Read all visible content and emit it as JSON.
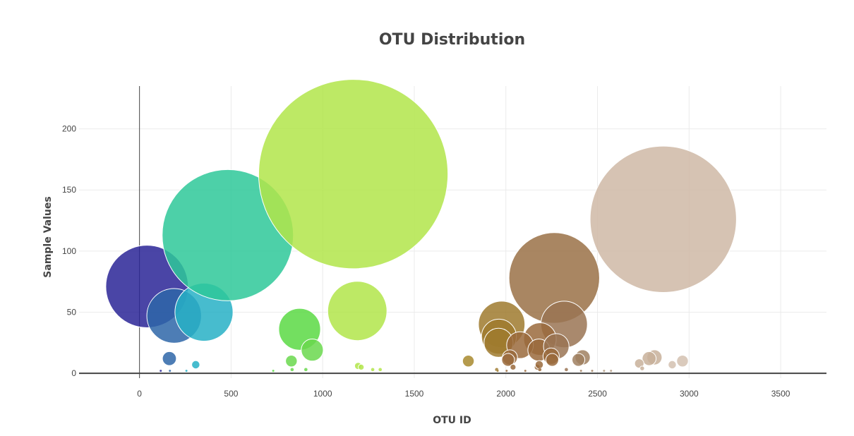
{
  "chart_data": {
    "type": "scatter",
    "variant": "bubble",
    "title": "OTU Distribution",
    "xlabel": "OTU ID",
    "ylabel": "Sample Values",
    "xlim": [
      -330,
      3750
    ],
    "ylim": [
      -4,
      235
    ],
    "xticks": [
      0,
      500,
      1000,
      1500,
      2000,
      2500,
      3000,
      3500
    ],
    "yticks": [
      0,
      50,
      100,
      150,
      200
    ],
    "grid": true,
    "legend": "none",
    "colorscale": "Earth",
    "points": [
      {
        "x": 41,
        "y": 71,
        "color": "#2a2596"
      },
      {
        "x": 189,
        "y": 47,
        "color": "#2e66a8"
      },
      {
        "x": 352,
        "y": 50,
        "color": "#27b0c6"
      },
      {
        "x": 482,
        "y": 113,
        "color": "#2ec899"
      },
      {
        "x": 1167,
        "y": 163,
        "color": "#b2e54a"
      },
      {
        "x": 2264,
        "y": 78,
        "color": "#9a7147"
      },
      {
        "x": 2859,
        "y": 126,
        "color": "#cfb9a6"
      },
      {
        "x": 874,
        "y": 36,
        "color": "#5ad944"
      },
      {
        "x": 1189,
        "y": 51,
        "color": "#b2e54a"
      },
      {
        "x": 1977,
        "y": 40,
        "color": "#9f7a2e"
      },
      {
        "x": 1962,
        "y": 30,
        "color": "#9f7a2e"
      },
      {
        "x": 1960,
        "y": 25,
        "color": "#9f7a2e"
      },
      {
        "x": 2318,
        "y": 40,
        "color": "#9a7454"
      },
      {
        "x": 2186,
        "y": 28,
        "color": "#9a6a3c"
      },
      {
        "x": 2077,
        "y": 23,
        "color": "#9a6a3c"
      },
      {
        "x": 2180,
        "y": 19,
        "color": "#9a6a3c"
      },
      {
        "x": 2275,
        "y": 22,
        "color": "#9a7454"
      },
      {
        "x": 943,
        "y": 19,
        "color": "#6ad84e"
      },
      {
        "x": 163,
        "y": 12,
        "color": "#2e66a8"
      },
      {
        "x": 307,
        "y": 7,
        "color": "#27b0c6"
      },
      {
        "x": 829,
        "y": 10,
        "color": "#6ad84e"
      },
      {
        "x": 1795,
        "y": 10,
        "color": "#a88a2e"
      },
      {
        "x": 2022,
        "y": 13,
        "color": "#9a6a3c"
      },
      {
        "x": 2012,
        "y": 11,
        "color": "#9a6a3c"
      },
      {
        "x": 2247,
        "y": 14,
        "color": "#9a6a3c"
      },
      {
        "x": 2253,
        "y": 11,
        "color": "#9a6a3c"
      },
      {
        "x": 2419,
        "y": 13,
        "color": "#a08060"
      },
      {
        "x": 2396,
        "y": 11,
        "color": "#a08060"
      },
      {
        "x": 2811,
        "y": 13,
        "color": "#c8b09a"
      },
      {
        "x": 2782,
        "y": 12,
        "color": "#c8b09a"
      },
      {
        "x": 2728,
        "y": 8,
        "color": "#c8b09a"
      },
      {
        "x": 2964,
        "y": 10,
        "color": "#d4c1b0"
      },
      {
        "x": 2908,
        "y": 7,
        "color": "#d4c1b0"
      },
      {
        "x": 1193,
        "y": 6,
        "color": "#b2e54a"
      },
      {
        "x": 1210,
        "y": 5,
        "color": "#b2e54a"
      },
      {
        "x": 2039,
        "y": 5,
        "color": "#9a6a3c"
      },
      {
        "x": 2171,
        "y": 5,
        "color": "#9a6a3c"
      },
      {
        "x": 2182,
        "y": 7,
        "color": "#9a6a3c"
      },
      {
        "x": 2744,
        "y": 4,
        "color": "#c8b09a"
      },
      {
        "x": 1273,
        "y": 3,
        "color": "#b2e54a"
      },
      {
        "x": 908,
        "y": 3,
        "color": "#6ad84e"
      },
      {
        "x": 833,
        "y": 3,
        "color": "#6ad84e"
      },
      {
        "x": 1314,
        "y": 3,
        "color": "#b2e54a"
      },
      {
        "x": 1950,
        "y": 3,
        "color": "#9f7a2e"
      },
      {
        "x": 2185,
        "y": 3,
        "color": "#9a6a3c"
      },
      {
        "x": 2330,
        "y": 3,
        "color": "#9a7454"
      },
      {
        "x": 2106,
        "y": 2,
        "color": "#9a6a3c"
      },
      {
        "x": 2004,
        "y": 2,
        "color": "#9a6a3c"
      },
      {
        "x": 2410,
        "y": 2,
        "color": "#a08060"
      },
      {
        "x": 2471,
        "y": 2,
        "color": "#a08060"
      },
      {
        "x": 2536,
        "y": 2,
        "color": "#b09a80"
      },
      {
        "x": 2574,
        "y": 2,
        "color": "#b09a80"
      },
      {
        "x": 116,
        "y": 2,
        "color": "#2a2596"
      },
      {
        "x": 166,
        "y": 2,
        "color": "#2e66a8"
      },
      {
        "x": 256,
        "y": 2,
        "color": "#27b0c6"
      },
      {
        "x": 730,
        "y": 2,
        "color": "#5ad944"
      },
      {
        "x": 1955,
        "y": 2,
        "color": "#9f7a2e"
      }
    ]
  }
}
